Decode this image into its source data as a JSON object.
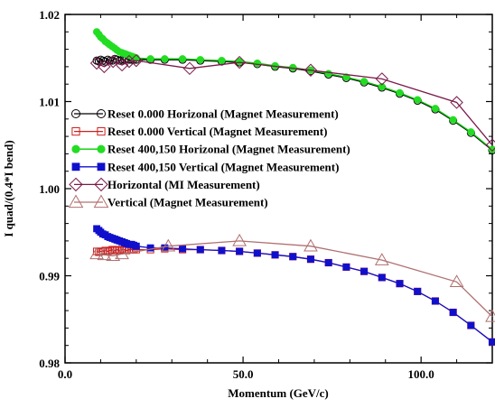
{
  "chart_data": {
    "type": "line",
    "xlabel": "Momentum (GeV/c)",
    "ylabel": "I quad/(0.4*I bend)",
    "xlim": [
      0,
      120
    ],
    "ylim": [
      0.98,
      1.02
    ],
    "x_ticks": [
      0,
      50,
      100
    ],
    "x_tick_labels": [
      "0.0",
      "50.0",
      "100.0"
    ],
    "y_ticks": [
      0.98,
      0.99,
      1.0,
      1.01,
      1.02
    ],
    "y_tick_labels": [
      "0.98",
      "0.99",
      "1.00",
      "1.01",
      "1.02"
    ],
    "grid": false,
    "legend_position": "left-middle",
    "series": [
      {
        "name": "Reset 0.000  Horizonal (Magnet Measurement)",
        "marker": "circle-open",
        "fill": "none",
        "stroke": "#000000",
        "line_color": "#000000",
        "x": [
          8.9,
          9.5,
          10,
          10.6,
          11.3,
          12,
          12.6,
          13.3,
          14,
          14.6,
          15.3,
          16,
          16.7,
          17.3,
          18,
          18.7,
          19.3,
          20,
          24,
          28,
          33,
          38,
          44,
          49,
          54,
          59,
          64,
          69,
          74,
          79,
          84,
          89,
          94,
          99,
          104,
          109,
          114,
          120
        ],
        "y": [
          1.0147,
          1.0146,
          1.0148,
          1.0147,
          1.0146,
          1.0148,
          1.0147,
          1.0147,
          1.0149,
          1.0148,
          1.0147,
          1.0148,
          1.0148,
          1.0149,
          1.0148,
          1.0148,
          1.0148,
          1.0148,
          1.0148,
          1.0148,
          1.0148,
          1.0147,
          1.0146,
          1.0145,
          1.0143,
          1.014,
          1.0138,
          1.0135,
          1.0131,
          1.0127,
          1.0122,
          1.0116,
          1.0109,
          1.0101,
          1.0091,
          1.0078,
          1.0064,
          1.0044
        ]
      },
      {
        "name": "Reset 0.000  Vertical (Magnet Measurement)",
        "marker": "square-open",
        "fill": "none",
        "stroke": "#cc2020",
        "line_color": "#cc2020",
        "x": [
          8.9,
          9.5,
          10,
          10.6,
          11.3,
          12,
          12.6,
          13.3,
          14,
          14.6,
          15.3,
          16,
          16.7,
          17.3,
          18,
          18.7,
          19.3,
          20,
          24,
          28,
          33,
          38,
          44,
          49,
          54,
          59,
          64,
          69,
          74,
          79,
          84,
          89,
          94,
          99,
          104,
          109,
          114,
          120
        ],
        "y": [
          0.9928,
          0.9927,
          0.9928,
          0.9928,
          0.9929,
          0.9928,
          0.9929,
          0.993,
          0.9929,
          0.993,
          0.9929,
          0.993,
          0.993,
          0.9929,
          0.993,
          0.993,
          0.993,
          0.993,
          0.993,
          0.9931,
          0.993,
          0.993,
          0.9929,
          0.9928,
          0.9926,
          0.9924,
          0.9922,
          0.9919,
          0.9915,
          0.991,
          0.9905,
          0.9898,
          0.9891,
          0.9882,
          0.9871,
          0.9858,
          0.9843,
          0.9824
        ]
      },
      {
        "name": "Reset 400,150 Horizonal (Magnet Measurement)",
        "marker": "circle-filled",
        "fill": "#22dd22",
        "stroke": "#22dd22",
        "line_color": "#00cc00",
        "x": [
          8.9,
          9.5,
          10,
          10.6,
          11.3,
          12,
          12.6,
          13.3,
          14,
          14.6,
          15.3,
          16,
          16.7,
          17.3,
          18,
          18.7,
          19.3,
          20,
          24,
          28,
          33,
          38,
          44,
          49,
          54,
          59,
          64,
          69,
          74,
          79,
          84,
          89,
          94,
          99,
          104,
          109,
          114,
          120
        ],
        "y": [
          1.018,
          1.0177,
          1.0174,
          1.0172,
          1.0169,
          1.0167,
          1.0165,
          1.0163,
          1.0161,
          1.0159,
          1.0157,
          1.0156,
          1.0155,
          1.0154,
          1.0153,
          1.0152,
          1.0151,
          1.015,
          1.0149,
          1.0149,
          1.0149,
          1.0148,
          1.0147,
          1.0146,
          1.0144,
          1.0141,
          1.0139,
          1.0136,
          1.0132,
          1.0128,
          1.0123,
          1.0117,
          1.011,
          1.0102,
          1.0092,
          1.0079,
          1.0065,
          1.0045
        ]
      },
      {
        "name": "Reset 400,150  Vertical (Magnet Measurement)",
        "marker": "square-filled",
        "fill": "#1010cc",
        "stroke": "#1010cc",
        "line_color": "#1010cc",
        "x": [
          8.9,
          9.5,
          10,
          10.6,
          11.3,
          12,
          12.6,
          13.3,
          14,
          14.6,
          15.3,
          16,
          16.7,
          17.3,
          18,
          18.7,
          19.3,
          20,
          24,
          28,
          33,
          38,
          44,
          49,
          54,
          59,
          64,
          69,
          74,
          79,
          84,
          89,
          94,
          99,
          104,
          109,
          114,
          120
        ],
        "y": [
          0.9954,
          0.9952,
          0.995,
          0.9948,
          0.9947,
          0.9945,
          0.9944,
          0.9943,
          0.9942,
          0.9941,
          0.994,
          0.9939,
          0.9938,
          0.9937,
          0.9936,
          0.9936,
          0.9935,
          0.9934,
          0.9932,
          0.9932,
          0.9931,
          0.993,
          0.9929,
          0.9928,
          0.9926,
          0.9924,
          0.9922,
          0.9919,
          0.9915,
          0.991,
          0.9905,
          0.9898,
          0.9891,
          0.9882,
          0.9871,
          0.9858,
          0.9843,
          0.9824
        ]
      },
      {
        "name": "Horizontal (MI Measurement)",
        "marker": "diamond-open",
        "fill": "none",
        "stroke": "#7a1a4a",
        "line_color": "#7a1a4a",
        "x": [
          8.9,
          11,
          13.5,
          16,
          18,
          20,
          35,
          49,
          69,
          89,
          110,
          120
        ],
        "y": [
          1.0144,
          1.014,
          1.0146,
          1.0142,
          1.0146,
          1.0147,
          1.0138,
          1.0145,
          1.0136,
          1.0126,
          1.0099,
          1.005
        ]
      },
      {
        "name": "Vertical (Magnet Measurement)",
        "marker": "triangle-open",
        "fill": "none",
        "stroke": "#b07070",
        "line_color": "#b07070",
        "x": [
          8.9,
          11,
          13.5,
          16,
          29,
          49,
          69,
          89,
          110,
          120
        ],
        "y": [
          0.9925,
          0.9924,
          0.9923,
          0.9925,
          0.9934,
          0.994,
          0.9934,
          0.9918,
          0.9893,
          0.9853
        ]
      }
    ]
  },
  "legend": {
    "entries": [
      "Reset 0.000  Horizonal (Magnet Measurement)",
      "Reset 0.000  Vertical (Magnet Measurement)",
      "Reset 400,150 Horizonal (Magnet Measurement)",
      "Reset 400,150  Vertical (Magnet Measurement)",
      "Horizontal (MI Measurement)",
      "Vertical (Magnet Measurement)"
    ]
  }
}
